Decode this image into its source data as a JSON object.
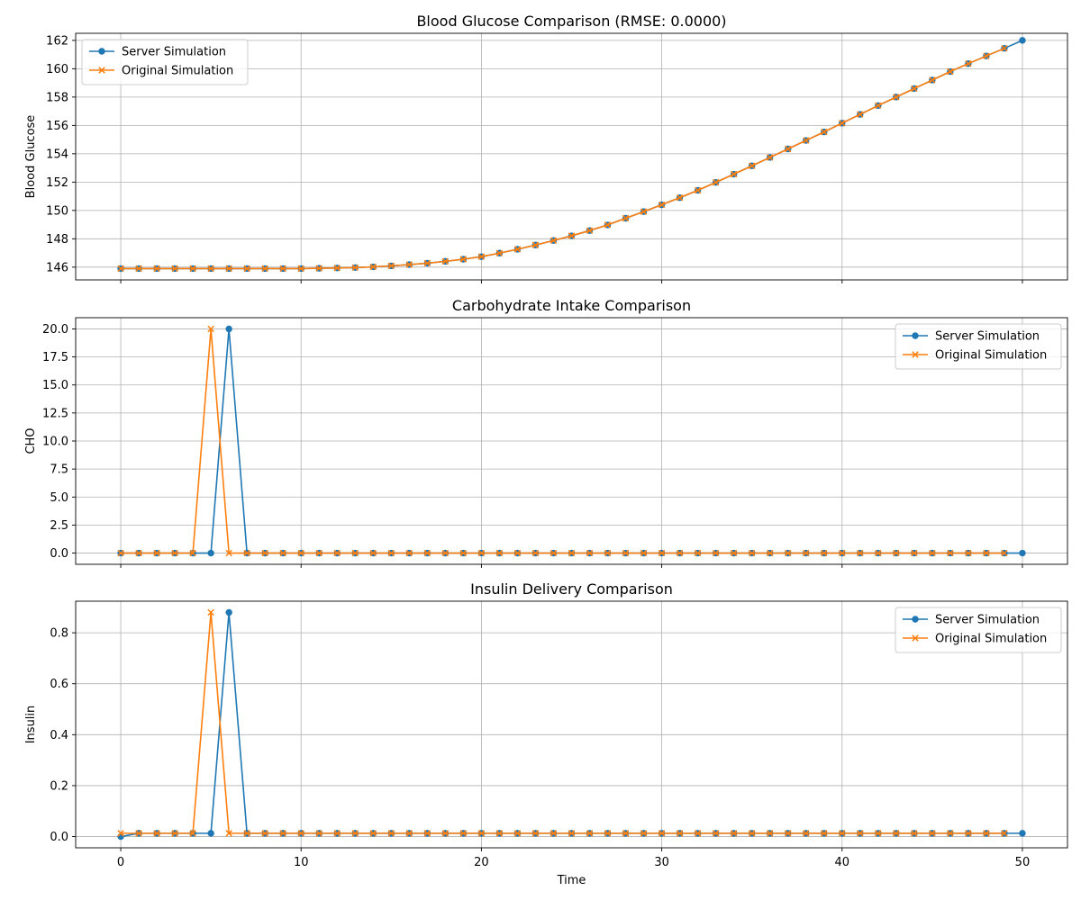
{
  "xlabel": "Time",
  "colors": {
    "server": "#1f77b4",
    "original": "#ff7f0e",
    "grid": "#b0b0b0"
  },
  "chart_data": [
    {
      "type": "line",
      "title": "Blood Glucose Comparison (RMSE: 0.0000)",
      "xlabel": "",
      "ylabel": "Blood Glucose",
      "xlim": [
        -2.5,
        52.5
      ],
      "ylim": [
        145.1,
        162.5
      ],
      "xticks": [
        0,
        10,
        20,
        30,
        40,
        50
      ],
      "yticks": [
        146,
        148,
        150,
        152,
        154,
        156,
        158,
        160,
        162
      ],
      "show_xticklabels": false,
      "grid": true,
      "legend": "top-left",
      "series": [
        {
          "name": "Server Simulation",
          "marker": "circle",
          "x": [
            0,
            1,
            2,
            3,
            4,
            5,
            6,
            7,
            8,
            9,
            10,
            11,
            12,
            13,
            14,
            15,
            16,
            17,
            18,
            19,
            20,
            21,
            22,
            23,
            24,
            25,
            26,
            27,
            28,
            29,
            30,
            31,
            32,
            33,
            34,
            35,
            36,
            37,
            38,
            39,
            40,
            41,
            42,
            43,
            44,
            45,
            46,
            47,
            48,
            49,
            50
          ],
          "values": [
            145.9,
            145.9,
            145.9,
            145.9,
            145.9,
            145.9,
            145.9,
            145.9,
            145.9,
            145.9,
            145.9,
            145.92,
            145.94,
            145.97,
            146.02,
            146.09,
            146.18,
            146.28,
            146.41,
            146.56,
            146.74,
            146.99,
            147.26,
            147.56,
            147.88,
            148.21,
            148.58,
            148.98,
            149.45,
            149.92,
            150.4,
            150.9,
            151.42,
            151.98,
            152.56,
            153.15,
            153.74,
            154.34,
            154.94,
            155.54,
            156.16,
            156.78,
            157.4,
            158.0,
            158.6,
            159.2,
            159.8,
            160.36,
            160.9,
            161.44,
            162.0
          ]
        },
        {
          "name": "Original Simulation",
          "marker": "x",
          "x": [
            0,
            1,
            2,
            3,
            4,
            5,
            6,
            7,
            8,
            9,
            10,
            11,
            12,
            13,
            14,
            15,
            16,
            17,
            18,
            19,
            20,
            21,
            22,
            23,
            24,
            25,
            26,
            27,
            28,
            29,
            30,
            31,
            32,
            33,
            34,
            35,
            36,
            37,
            38,
            39,
            40,
            41,
            42,
            43,
            44,
            45,
            46,
            47,
            48,
            49
          ],
          "values": [
            145.9,
            145.9,
            145.9,
            145.9,
            145.9,
            145.9,
            145.9,
            145.9,
            145.9,
            145.9,
            145.9,
            145.92,
            145.94,
            145.97,
            146.02,
            146.09,
            146.18,
            146.28,
            146.41,
            146.56,
            146.74,
            146.99,
            147.26,
            147.56,
            147.88,
            148.21,
            148.58,
            148.98,
            149.45,
            149.92,
            150.4,
            150.9,
            151.42,
            151.98,
            152.56,
            153.15,
            153.74,
            154.34,
            154.94,
            155.54,
            156.16,
            156.78,
            157.4,
            158.0,
            158.6,
            159.2,
            159.8,
            160.36,
            160.9,
            161.44
          ]
        }
      ]
    },
    {
      "type": "line",
      "title": "Carbohydrate Intake Comparison",
      "xlabel": "",
      "ylabel": "CHO",
      "xlim": [
        -2.5,
        52.5
      ],
      "ylim": [
        -1.0,
        21.0
      ],
      "xticks": [
        0,
        10,
        20,
        30,
        40,
        50
      ],
      "yticks": [
        0.0,
        2.5,
        5.0,
        7.5,
        10.0,
        12.5,
        15.0,
        17.5,
        20.0
      ],
      "ytick_labels": [
        "0.0",
        "2.5",
        "5.0",
        "7.5",
        "10.0",
        "12.5",
        "15.0",
        "17.5",
        "20.0"
      ],
      "show_xticklabels": false,
      "grid": true,
      "legend": "top-right",
      "series": [
        {
          "name": "Server Simulation",
          "marker": "circle",
          "x": [
            0,
            1,
            2,
            3,
            4,
            5,
            6,
            7,
            8,
            9,
            10,
            11,
            12,
            13,
            14,
            15,
            16,
            17,
            18,
            19,
            20,
            21,
            22,
            23,
            24,
            25,
            26,
            27,
            28,
            29,
            30,
            31,
            32,
            33,
            34,
            35,
            36,
            37,
            38,
            39,
            40,
            41,
            42,
            43,
            44,
            45,
            46,
            47,
            48,
            49,
            50
          ],
          "values": [
            0,
            0,
            0,
            0,
            0,
            0,
            20,
            0,
            0,
            0,
            0,
            0,
            0,
            0,
            0,
            0,
            0,
            0,
            0,
            0,
            0,
            0,
            0,
            0,
            0,
            0,
            0,
            0,
            0,
            0,
            0,
            0,
            0,
            0,
            0,
            0,
            0,
            0,
            0,
            0,
            0,
            0,
            0,
            0,
            0,
            0,
            0,
            0,
            0,
            0,
            0
          ]
        },
        {
          "name": "Original Simulation",
          "marker": "x",
          "x": [
            0,
            1,
            2,
            3,
            4,
            5,
            6,
            7,
            8,
            9,
            10,
            11,
            12,
            13,
            14,
            15,
            16,
            17,
            18,
            19,
            20,
            21,
            22,
            23,
            24,
            25,
            26,
            27,
            28,
            29,
            30,
            31,
            32,
            33,
            34,
            35,
            36,
            37,
            38,
            39,
            40,
            41,
            42,
            43,
            44,
            45,
            46,
            47,
            48,
            49
          ],
          "values": [
            0,
            0,
            0,
            0,
            0,
            20,
            0,
            0,
            0,
            0,
            0,
            0,
            0,
            0,
            0,
            0,
            0,
            0,
            0,
            0,
            0,
            0,
            0,
            0,
            0,
            0,
            0,
            0,
            0,
            0,
            0,
            0,
            0,
            0,
            0,
            0,
            0,
            0,
            0,
            0,
            0,
            0,
            0,
            0,
            0,
            0,
            0,
            0,
            0,
            0
          ]
        }
      ]
    },
    {
      "type": "line",
      "title": "Insulin Delivery Comparison",
      "xlabel": "Time",
      "ylabel": "Insulin",
      "xlim": [
        -2.5,
        52.5
      ],
      "ylim": [
        -0.044,
        0.924
      ],
      "xticks": [
        0,
        10,
        20,
        30,
        40,
        50
      ],
      "yticks": [
        0.0,
        0.2,
        0.4,
        0.6,
        0.8
      ],
      "ytick_labels": [
        "0.0",
        "0.2",
        "0.4",
        "0.6",
        "0.8"
      ],
      "show_xticklabels": true,
      "grid": true,
      "legend": "top-right",
      "series": [
        {
          "name": "Server Simulation",
          "marker": "circle",
          "x": [
            0,
            1,
            2,
            3,
            4,
            5,
            6,
            7,
            8,
            9,
            10,
            11,
            12,
            13,
            14,
            15,
            16,
            17,
            18,
            19,
            20,
            21,
            22,
            23,
            24,
            25,
            26,
            27,
            28,
            29,
            30,
            31,
            32,
            33,
            34,
            35,
            36,
            37,
            38,
            39,
            40,
            41,
            42,
            43,
            44,
            45,
            46,
            47,
            48,
            49,
            50
          ],
          "values": [
            0.0,
            0.013,
            0.013,
            0.013,
            0.013,
            0.013,
            0.88,
            0.013,
            0.013,
            0.013,
            0.013,
            0.013,
            0.013,
            0.013,
            0.013,
            0.013,
            0.013,
            0.013,
            0.013,
            0.013,
            0.013,
            0.013,
            0.013,
            0.013,
            0.013,
            0.013,
            0.013,
            0.013,
            0.013,
            0.013,
            0.013,
            0.013,
            0.013,
            0.013,
            0.013,
            0.013,
            0.013,
            0.013,
            0.013,
            0.013,
            0.013,
            0.013,
            0.013,
            0.013,
            0.013,
            0.013,
            0.013,
            0.013,
            0.013,
            0.013,
            0.013
          ]
        },
        {
          "name": "Original Simulation",
          "marker": "x",
          "x": [
            0,
            1,
            2,
            3,
            4,
            5,
            6,
            7,
            8,
            9,
            10,
            11,
            12,
            13,
            14,
            15,
            16,
            17,
            18,
            19,
            20,
            21,
            22,
            23,
            24,
            25,
            26,
            27,
            28,
            29,
            30,
            31,
            32,
            33,
            34,
            35,
            36,
            37,
            38,
            39,
            40,
            41,
            42,
            43,
            44,
            45,
            46,
            47,
            48,
            49
          ],
          "values": [
            0.013,
            0.013,
            0.013,
            0.013,
            0.013,
            0.88,
            0.013,
            0.013,
            0.013,
            0.013,
            0.013,
            0.013,
            0.013,
            0.013,
            0.013,
            0.013,
            0.013,
            0.013,
            0.013,
            0.013,
            0.013,
            0.013,
            0.013,
            0.013,
            0.013,
            0.013,
            0.013,
            0.013,
            0.013,
            0.013,
            0.013,
            0.013,
            0.013,
            0.013,
            0.013,
            0.013,
            0.013,
            0.013,
            0.013,
            0.013,
            0.013,
            0.013,
            0.013,
            0.013,
            0.013,
            0.013,
            0.013,
            0.013,
            0.013,
            0.013
          ]
        }
      ]
    }
  ]
}
